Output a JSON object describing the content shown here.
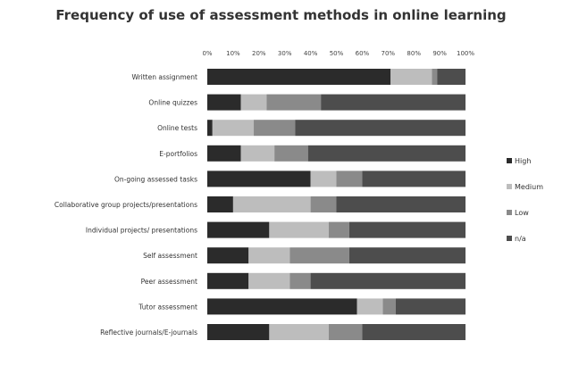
{
  "chart_data": {
    "type": "bar",
    "orientation": "horizontal",
    "stacked": "100%",
    "title": "Frequency of use of assessment methods in online learning",
    "categories": [
      "Written assignment",
      "Online quizzes",
      "Online tests",
      "E-portfolios",
      "On-going assessed tasks",
      "Collaborative group projects/presentations",
      "Individual projects/ presentations",
      "Self assessment",
      "Peer assessment",
      "Tutor assessment",
      "Reflective journals/E-journals"
    ],
    "x_ticks": [
      "0%",
      "10%",
      "20%",
      "30%",
      "40%",
      "50%",
      "60%",
      "70%",
      "80%",
      "90%",
      "100%"
    ],
    "xlim": [
      0,
      100
    ],
    "series": [
      {
        "name": "High",
        "color": "#2b2b2b",
        "values": [
          71,
          13,
          2,
          13,
          40,
          10,
          24,
          16,
          16,
          58,
          24
        ]
      },
      {
        "name": "Medium",
        "color": "#bdbdbd",
        "values": [
          16,
          10,
          16,
          13,
          10,
          30,
          23,
          16,
          16,
          10,
          23
        ]
      },
      {
        "name": "Low",
        "color": "#8a8a8a",
        "values": [
          2,
          21,
          16,
          13,
          10,
          10,
          8,
          23,
          8,
          5,
          13
        ]
      },
      {
        "name": "n/a",
        "color": "#4d4d4d",
        "values": [
          11,
          56,
          66,
          61,
          40,
          50,
          45,
          45,
          60,
          27,
          40
        ]
      }
    ],
    "legend_position": "right",
    "grid": false
  }
}
